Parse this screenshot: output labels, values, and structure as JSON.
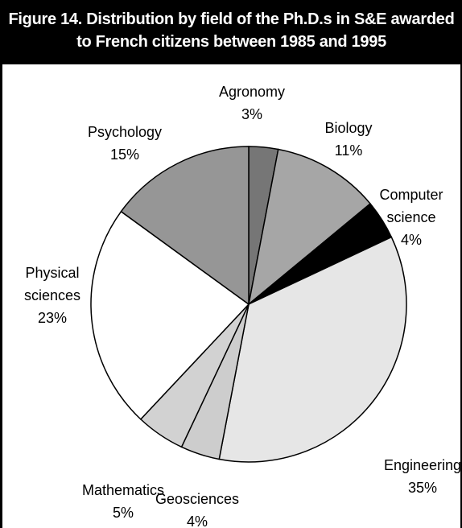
{
  "chart_data": {
    "type": "pie",
    "title": "Figure 14. Distribution by field of the Ph.D.s in S&E awarded to French citizens between 1985 and 1995",
    "categories": [
      "Agronomy",
      "Biology",
      "Computer science",
      "Engineering",
      "Geosciences",
      "Mathematics",
      "Physical sciences",
      "Psychology"
    ],
    "values": [
      3,
      11,
      4,
      35,
      4,
      5,
      23,
      15
    ],
    "value_labels": [
      "3%",
      "11%",
      "4%",
      "35%",
      "4%",
      "5%",
      "23%",
      "15%"
    ],
    "colors": [
      "#767676",
      "#a6a6a6",
      "#000000",
      "#e6e6e6",
      "#cdcdcd",
      "#d2d2d2",
      "#ffffff",
      "#969696"
    ]
  }
}
